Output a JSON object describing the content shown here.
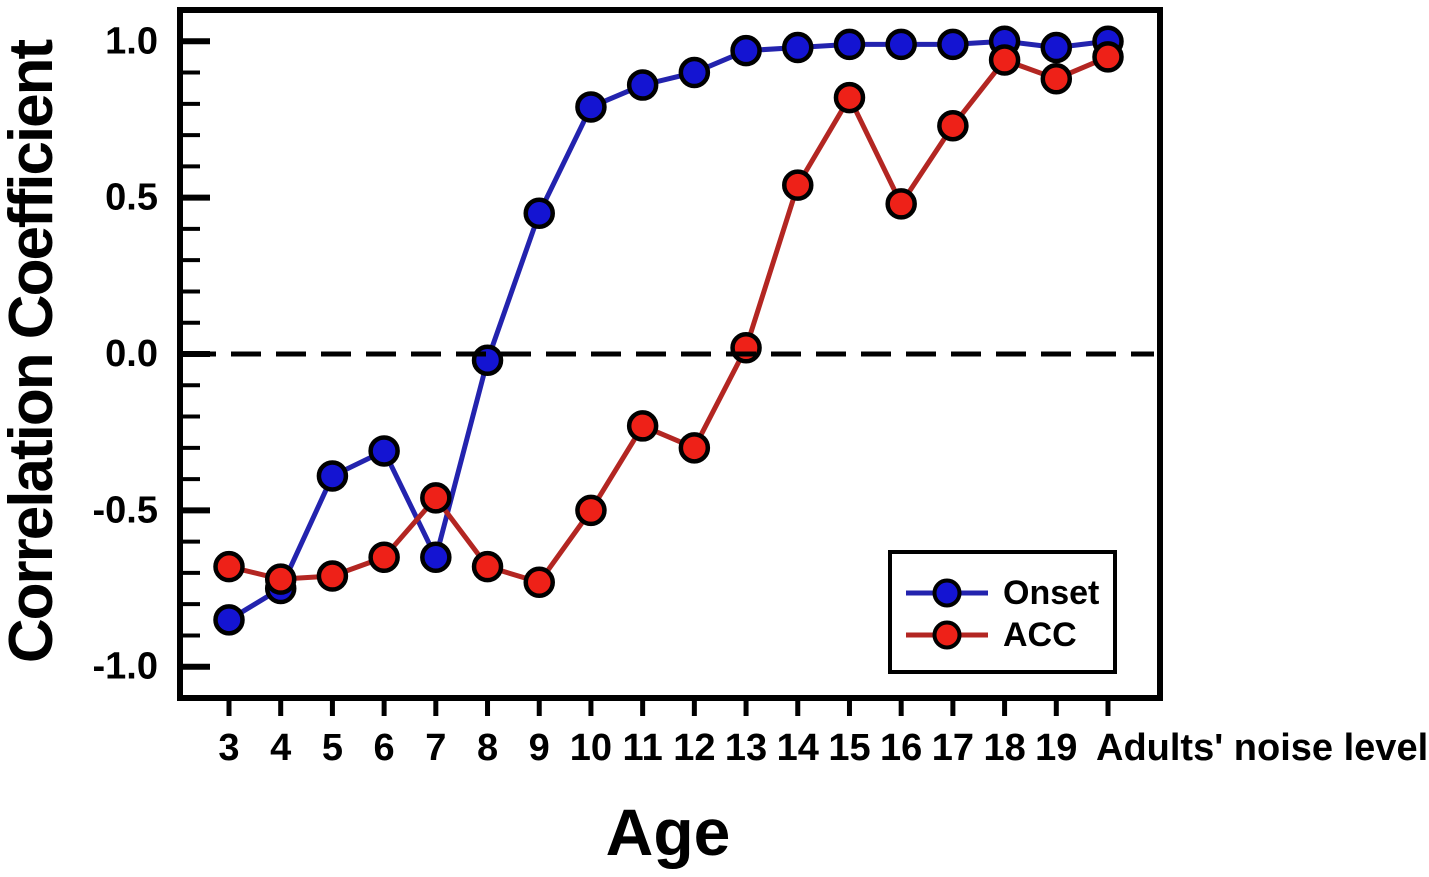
{
  "figure": {
    "background": "#ffffff",
    "frame_color": "#000000"
  },
  "chart_data": {
    "type": "line",
    "title": "",
    "xlabel": "Age",
    "ylabel": "Correlation Coefficient",
    "categories": [
      "3",
      "4",
      "5",
      "6",
      "7",
      "8",
      "9",
      "10",
      "11",
      "12",
      "13",
      "14",
      "15",
      "16",
      "17",
      "18",
      "19",
      "Adults' noise level"
    ],
    "series": [
      {
        "name": "Onset",
        "marker_color": "#1414d2",
        "line_color": "#2323ae",
        "values": [
          -0.85,
          -0.75,
          -0.39,
          -0.31,
          -0.65,
          -0.02,
          0.45,
          0.79,
          0.86,
          0.9,
          0.97,
          0.98,
          0.99,
          0.99,
          0.99,
          1.0,
          0.98,
          1.0
        ]
      },
      {
        "name": "ACC",
        "marker_color": "#ee2118",
        "line_color": "#b32622",
        "values": [
          -0.68,
          -0.72,
          -0.71,
          -0.65,
          -0.46,
          -0.68,
          -0.73,
          -0.5,
          -0.23,
          -0.3,
          0.02,
          0.54,
          0.82,
          0.48,
          0.73,
          0.94,
          0.88,
          0.95
        ]
      }
    ],
    "ylim": [
      -1.1,
      1.1
    ],
    "yticks": {
      "major": [
        1.0,
        0.5,
        0.0,
        -0.5,
        -1.0
      ],
      "labels": [
        "1.0",
        "0.5",
        "0.0",
        "-0.5",
        "-1.0"
      ],
      "minor_step": 0.1
    },
    "zero_line": {
      "y": 0.0,
      "style": "dashed",
      "color": "#000000"
    },
    "legend": {
      "position": "inside-bottom-right",
      "entries": [
        "Onset",
        "ACC"
      ]
    },
    "grid": false
  }
}
